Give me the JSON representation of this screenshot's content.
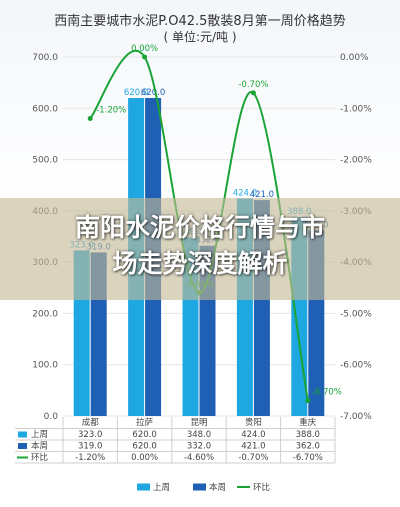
{
  "chart_data": {
    "type": "bar+line",
    "title": "西南主要城市水泥P.O42.5散装8月第一周价格趋势",
    "subtitle": "( 单位:元/吨 )",
    "categories": [
      "成都",
      "拉萨",
      "昆明",
      "贵阳",
      "重庆"
    ],
    "series": [
      {
        "name": "上周",
        "type": "bar",
        "color": "#1ea7e1",
        "values": [
          323.0,
          620.0,
          348.0,
          424.0,
          388.0
        ],
        "labels": [
          "323.0",
          "620.0",
          "348.0",
          "424.0",
          "388.0"
        ]
      },
      {
        "name": "本周",
        "type": "bar",
        "color": "#1f5fb4",
        "values": [
          319.0,
          620.0,
          332.0,
          421.0,
          362.0
        ],
        "labels": [
          "319.0",
          "620.0",
          "332.0",
          "421.0",
          "362.0"
        ]
      },
      {
        "name": "环比",
        "type": "line",
        "axis": "right",
        "color": "#1aa337",
        "values": [
          -1.2,
          0.0,
          -4.6,
          -0.7,
          -6.7
        ],
        "labels": [
          "-1.20%",
          "0.00%",
          "-4.60%",
          "-0.70%",
          "-6.70%"
        ]
      }
    ],
    "y_left": {
      "min": 0,
      "max": 700,
      "ticks": [
        "0.0",
        "100.0",
        "200.0",
        "300.0",
        "400.0",
        "500.0",
        "600.0",
        "700.0"
      ]
    },
    "y_right": {
      "min": -7,
      "max": 0,
      "ticks": [
        "0.00%",
        "-1.00%",
        "-2.00%",
        "-3.00%",
        "-4.00%",
        "-5.00%",
        "-6.00%",
        "-7.00%"
      ]
    },
    "grid": true,
    "legend": "bottom",
    "table_rows": [
      {
        "label": "上周",
        "cells": [
          "323.0",
          "620.0",
          "348.0",
          "424.0",
          "388.0"
        ]
      },
      {
        "label": "本周",
        "cells": [
          "319.0",
          "620.0",
          "332.0",
          "421.0",
          "362.0"
        ]
      },
      {
        "label": "环比",
        "cells": [
          "-1.20%",
          "0.00%",
          "-4.60%",
          "-0.70%",
          "-6.70%"
        ]
      }
    ]
  },
  "overlay": {
    "line1": "南阳水泥价格行情与市",
    "line2": "场走势深度解析"
  }
}
